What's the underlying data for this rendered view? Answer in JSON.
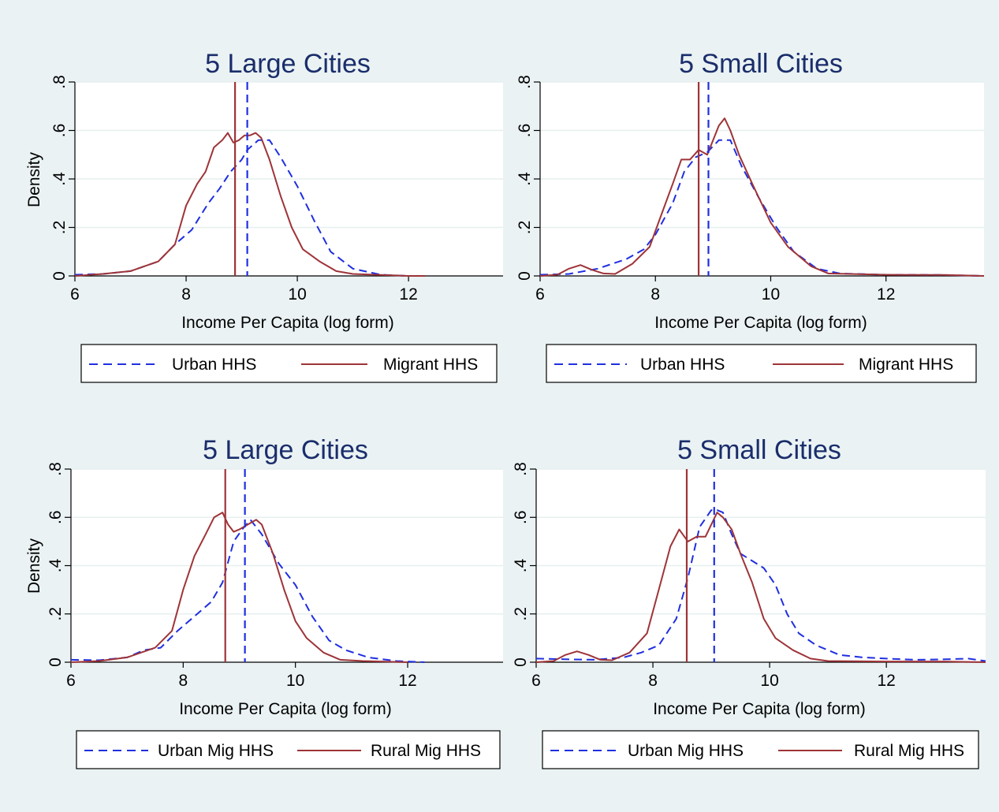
{
  "chart_data": [
    {
      "type": "line",
      "title": "5 Large Cities",
      "xlabel": "Income Per Capita (log form)",
      "ylabel": "Density",
      "xlim": [
        6,
        13.7
      ],
      "ylim": [
        0,
        0.8
      ],
      "xticks": [
        "6",
        "8",
        "10",
        "12"
      ],
      "yticks": [
        "0",
        ".2",
        ".4",
        ".6",
        ".8"
      ],
      "grid": "horizontal",
      "legend": {
        "placement": "bottom"
      },
      "vlines": [
        {
          "series": "Migrant HHS",
          "x": 8.88
        },
        {
          "series": "Urban HHS",
          "x": 9.1
        }
      ],
      "series": [
        {
          "name": "Urban HHS",
          "style": "dashed",
          "color": "#1f2fe0",
          "points": [
            [
              6.0,
              0.005
            ],
            [
              6.5,
              0.008
            ],
            [
              7.0,
              0.02
            ],
            [
              7.5,
              0.06
            ],
            [
              7.8,
              0.13
            ],
            [
              8.1,
              0.19
            ],
            [
              8.4,
              0.3
            ],
            [
              8.6,
              0.36
            ],
            [
              8.8,
              0.43
            ],
            [
              9.0,
              0.48
            ],
            [
              9.1,
              0.52
            ],
            [
              9.3,
              0.56
            ],
            [
              9.5,
              0.56
            ],
            [
              9.7,
              0.49
            ],
            [
              10.0,
              0.37
            ],
            [
              10.3,
              0.23
            ],
            [
              10.6,
              0.1
            ],
            [
              11.0,
              0.03
            ],
            [
              11.5,
              0.005
            ],
            [
              12.0,
              0.0
            ]
          ]
        },
        {
          "name": "Migrant HHS",
          "style": "solid",
          "color": "#9e3438",
          "points": [
            [
              6.0,
              0.0
            ],
            [
              6.5,
              0.008
            ],
            [
              7.0,
              0.02
            ],
            [
              7.5,
              0.06
            ],
            [
              7.8,
              0.13
            ],
            [
              8.0,
              0.29
            ],
            [
              8.2,
              0.38
            ],
            [
              8.35,
              0.43
            ],
            [
              8.5,
              0.53
            ],
            [
              8.65,
              0.56
            ],
            [
              8.75,
              0.59
            ],
            [
              8.85,
              0.55
            ],
            [
              8.95,
              0.56
            ],
            [
              9.05,
              0.58
            ],
            [
              9.15,
              0.58
            ],
            [
              9.25,
              0.59
            ],
            [
              9.35,
              0.57
            ],
            [
              9.5,
              0.48
            ],
            [
              9.7,
              0.33
            ],
            [
              9.9,
              0.2
            ],
            [
              10.1,
              0.11
            ],
            [
              10.4,
              0.06
            ],
            [
              10.7,
              0.02
            ],
            [
              11.0,
              0.008
            ],
            [
              12.0,
              0.0
            ],
            [
              12.3,
              0.0
            ]
          ]
        }
      ]
    },
    {
      "type": "line",
      "title": "5 Small Cities",
      "xlabel": "Income Per Capita (log form)",
      "ylabel": "",
      "xlim": [
        6,
        13.7
      ],
      "ylim": [
        0,
        0.8
      ],
      "xticks": [
        "6",
        "8",
        "10",
        "12"
      ],
      "yticks": [
        "0",
        ".2",
        ".4",
        ".6",
        ".8"
      ],
      "grid": "horizontal",
      "legend": {
        "placement": "bottom"
      },
      "vlines": [
        {
          "series": "Migrant HHS",
          "x": 8.75
        },
        {
          "series": "Urban HHS",
          "x": 8.92
        }
      ],
      "series": [
        {
          "name": "Urban HHS",
          "style": "dashed",
          "color": "#1f2fe0",
          "points": [
            [
              6.0,
              0.005
            ],
            [
              6.5,
              0.008
            ],
            [
              7.0,
              0.03
            ],
            [
              7.5,
              0.07
            ],
            [
              7.8,
              0.11
            ],
            [
              8.0,
              0.17
            ],
            [
              8.3,
              0.3
            ],
            [
              8.5,
              0.43
            ],
            [
              8.7,
              0.49
            ],
            [
              8.9,
              0.51
            ],
            [
              9.1,
              0.56
            ],
            [
              9.3,
              0.56
            ],
            [
              9.5,
              0.45
            ],
            [
              9.8,
              0.32
            ],
            [
              10.1,
              0.2
            ],
            [
              10.4,
              0.1
            ],
            [
              10.8,
              0.03
            ],
            [
              11.2,
              0.01
            ],
            [
              12.0,
              0.005
            ],
            [
              13.0,
              0.004
            ],
            [
              13.7,
              0.0
            ]
          ]
        },
        {
          "name": "Migrant HHS",
          "style": "solid",
          "color": "#9e3438",
          "points": [
            [
              6.0,
              0.0
            ],
            [
              6.3,
              0.005
            ],
            [
              6.5,
              0.03
            ],
            [
              6.7,
              0.045
            ],
            [
              6.9,
              0.025
            ],
            [
              7.1,
              0.01
            ],
            [
              7.3,
              0.008
            ],
            [
              7.6,
              0.05
            ],
            [
              7.9,
              0.12
            ],
            [
              8.1,
              0.25
            ],
            [
              8.3,
              0.38
            ],
            [
              8.45,
              0.48
            ],
            [
              8.6,
              0.48
            ],
            [
              8.75,
              0.52
            ],
            [
              8.9,
              0.5
            ],
            [
              9.0,
              0.56
            ],
            [
              9.1,
              0.62
            ],
            [
              9.2,
              0.65
            ],
            [
              9.3,
              0.6
            ],
            [
              9.45,
              0.5
            ],
            [
              9.7,
              0.37
            ],
            [
              10.0,
              0.22
            ],
            [
              10.3,
              0.12
            ],
            [
              10.7,
              0.04
            ],
            [
              11.0,
              0.01
            ],
            [
              12.0,
              0.005
            ],
            [
              13.0,
              0.004
            ],
            [
              13.7,
              0.0
            ]
          ]
        }
      ]
    },
    {
      "type": "line",
      "title": "5 Large Cities",
      "xlabel": "Income Per Capita (log form)",
      "ylabel": "Density",
      "xlim": [
        6,
        13.7
      ],
      "ylim": [
        0,
        0.8
      ],
      "xticks": [
        "6",
        "8",
        "10",
        "12"
      ],
      "yticks": [
        "0",
        ".2",
        ".4",
        ".6",
        ".8"
      ],
      "grid": "horizontal",
      "legend": {
        "placement": "bottom"
      },
      "vlines": [
        {
          "series": "Rural Mig HHS",
          "x": 8.75
        },
        {
          "series": "Urban Mig HHS",
          "x": 9.1
        }
      ],
      "series": [
        {
          "name": "Urban Mig HHS",
          "style": "dashed",
          "color": "#1f2fe0",
          "points": [
            [
              6.0,
              0.01
            ],
            [
              6.5,
              0.008
            ],
            [
              7.0,
              0.02
            ],
            [
              7.3,
              0.05
            ],
            [
              7.6,
              0.06
            ],
            [
              7.9,
              0.13
            ],
            [
              8.2,
              0.19
            ],
            [
              8.5,
              0.25
            ],
            [
              8.7,
              0.33
            ],
            [
              8.9,
              0.5
            ],
            [
              9.05,
              0.55
            ],
            [
              9.2,
              0.59
            ],
            [
              9.4,
              0.53
            ],
            [
              9.7,
              0.41
            ],
            [
              10.0,
              0.32
            ],
            [
              10.3,
              0.19
            ],
            [
              10.6,
              0.09
            ],
            [
              10.9,
              0.05
            ],
            [
              11.3,
              0.02
            ],
            [
              11.8,
              0.005
            ],
            [
              12.3,
              0.0
            ]
          ]
        },
        {
          "name": "Rural Mig HHS",
          "style": "solid",
          "color": "#9e3438",
          "points": [
            [
              6.0,
              0.0
            ],
            [
              6.5,
              0.005
            ],
            [
              7.0,
              0.02
            ],
            [
              7.5,
              0.06
            ],
            [
              7.8,
              0.13
            ],
            [
              8.0,
              0.3
            ],
            [
              8.2,
              0.44
            ],
            [
              8.4,
              0.53
            ],
            [
              8.55,
              0.6
            ],
            [
              8.7,
              0.62
            ],
            [
              8.8,
              0.57
            ],
            [
              8.9,
              0.54
            ],
            [
              9.0,
              0.55
            ],
            [
              9.15,
              0.57
            ],
            [
              9.3,
              0.59
            ],
            [
              9.4,
              0.57
            ],
            [
              9.6,
              0.45
            ],
            [
              9.8,
              0.3
            ],
            [
              10.0,
              0.17
            ],
            [
              10.2,
              0.1
            ],
            [
              10.5,
              0.04
            ],
            [
              10.8,
              0.01
            ],
            [
              11.2,
              0.005
            ],
            [
              12.0,
              0.0
            ]
          ]
        }
      ]
    },
    {
      "type": "line",
      "title": "5 Small Cities",
      "xlabel": "Income Per Capita (log form)",
      "ylabel": "",
      "xlim": [
        6,
        13.7
      ],
      "ylim": [
        0,
        0.8
      ],
      "xticks": [
        "6",
        "8",
        "10",
        "12"
      ],
      "yticks": [
        "0",
        ".2",
        ".4",
        ".6",
        ".8"
      ],
      "grid": "horizontal",
      "legend": {
        "placement": "bottom"
      },
      "vlines": [
        {
          "series": "Rural Mig HHS",
          "x": 8.58
        },
        {
          "series": "Urban Mig HHS",
          "x": 9.05
        }
      ],
      "series": [
        {
          "name": "Urban Mig HHS",
          "style": "dashed",
          "color": "#1f2fe0",
          "points": [
            [
              6.0,
              0.015
            ],
            [
              6.5,
              0.012
            ],
            [
              7.0,
              0.01
            ],
            [
              7.5,
              0.02
            ],
            [
              7.8,
              0.04
            ],
            [
              8.1,
              0.07
            ],
            [
              8.4,
              0.18
            ],
            [
              8.6,
              0.35
            ],
            [
              8.8,
              0.56
            ],
            [
              9.0,
              0.63
            ],
            [
              9.1,
              0.63
            ],
            [
              9.2,
              0.62
            ],
            [
              9.35,
              0.53
            ],
            [
              9.5,
              0.45
            ],
            [
              9.7,
              0.42
            ],
            [
              9.9,
              0.39
            ],
            [
              10.1,
              0.32
            ],
            [
              10.3,
              0.2
            ],
            [
              10.5,
              0.12
            ],
            [
              10.8,
              0.07
            ],
            [
              11.2,
              0.03
            ],
            [
              11.6,
              0.02
            ],
            [
              12.0,
              0.015
            ],
            [
              12.5,
              0.01
            ],
            [
              13.0,
              0.012
            ],
            [
              13.4,
              0.015
            ],
            [
              13.7,
              0.005
            ]
          ]
        },
        {
          "name": "Rural Mig HHS",
          "style": "solid",
          "color": "#9e3438",
          "points": [
            [
              6.0,
              0.0
            ],
            [
              6.3,
              0.005
            ],
            [
              6.5,
              0.03
            ],
            [
              6.7,
              0.045
            ],
            [
              6.9,
              0.03
            ],
            [
              7.1,
              0.01
            ],
            [
              7.3,
              0.008
            ],
            [
              7.6,
              0.04
            ],
            [
              7.9,
              0.12
            ],
            [
              8.1,
              0.3
            ],
            [
              8.3,
              0.48
            ],
            [
              8.45,
              0.55
            ],
            [
              8.6,
              0.5
            ],
            [
              8.75,
              0.52
            ],
            [
              8.9,
              0.52
            ],
            [
              9.0,
              0.57
            ],
            [
              9.1,
              0.62
            ],
            [
              9.2,
              0.6
            ],
            [
              9.35,
              0.55
            ],
            [
              9.5,
              0.45
            ],
            [
              9.7,
              0.33
            ],
            [
              9.9,
              0.18
            ],
            [
              10.1,
              0.1
            ],
            [
              10.4,
              0.05
            ],
            [
              10.7,
              0.015
            ],
            [
              11.0,
              0.005
            ],
            [
              12.0,
              0.003
            ],
            [
              13.0,
              0.003
            ],
            [
              13.7,
              0.0
            ]
          ]
        }
      ]
    }
  ]
}
